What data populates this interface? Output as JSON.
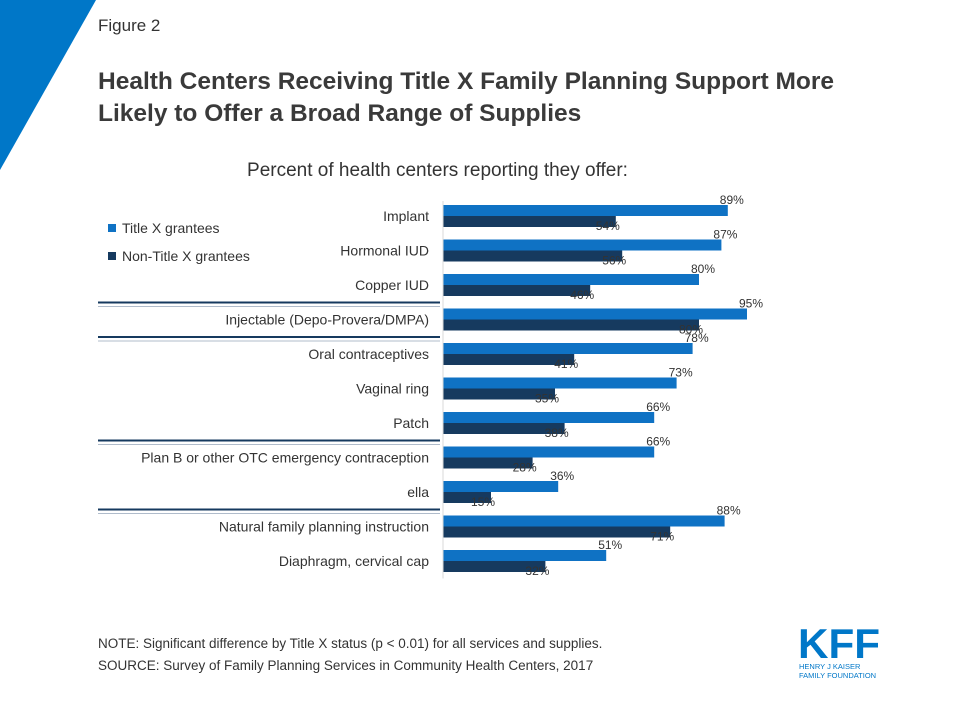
{
  "figure_label": "Figure 2",
  "title": "Health Centers Receiving Title X Family Planning Support More Likely to Offer a Broad Range of Supplies",
  "subtitle": "Percent of health centers reporting they offer:",
  "colors": {
    "accent": "#0077c8",
    "title_x": "#0f72c4",
    "non_title_x": "#163a5f",
    "divider": "#163a5f"
  },
  "legend": [
    {
      "label": "Title X grantees",
      "color": "#0f72c4"
    },
    {
      "label": "Non-Title X grantees",
      "color": "#163a5f"
    }
  ],
  "chart_data": {
    "type": "bar",
    "orientation": "horizontal",
    "categories": [
      "Implant",
      "Hormonal IUD",
      "Copper IUD",
      "Injectable (Depo-Provera/DMPA)",
      "Oral contraceptives",
      "Vaginal ring",
      "Patch",
      "Plan B or other OTC emergency contraception",
      "ella",
      "Natural family planning instruction",
      "Diaphragm, cervical cap"
    ],
    "series": [
      {
        "name": "Title X grantees",
        "values": [
          89,
          87,
          80,
          95,
          78,
          73,
          66,
          66,
          36,
          88,
          51
        ]
      },
      {
        "name": "Non-Title X grantees",
        "values": [
          54,
          56,
          46,
          80,
          41,
          35,
          38,
          28,
          15,
          71,
          32
        ]
      }
    ],
    "value_suffix": "%",
    "xlim": [
      0,
      100
    ],
    "grid": false,
    "legend_position": "top-left",
    "group_dividers_after": [
      "Copper IUD",
      "Injectable (Depo-Provera/DMPA)",
      "Patch",
      "ella"
    ]
  },
  "notes": {
    "note": "NOTE: Significant difference by Title X status (p < 0.01) for all services and supplies.",
    "source": "SOURCE: Survey of Family Planning Services in Community Health Centers, 2017"
  },
  "logo": {
    "mark": "KFF",
    "line1": "HENRY J KAISER",
    "line2": "FAMILY FOUNDATION"
  }
}
